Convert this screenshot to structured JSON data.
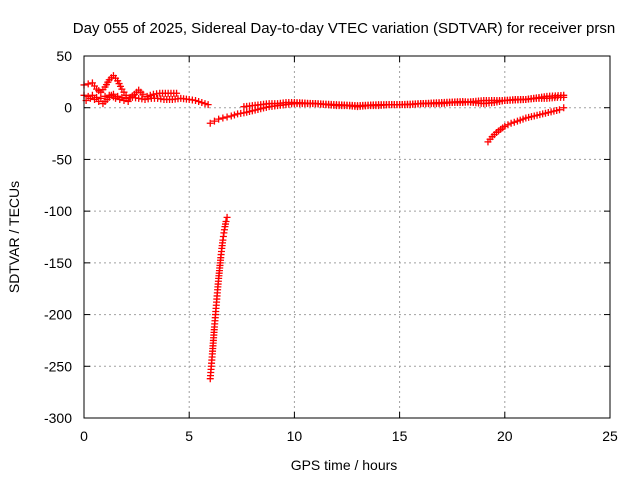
{
  "chart_data": {
    "type": "scatter",
    "title": "Day 055 of 2025, Sidereal Day-to-day VTEC variation (SDTVAR) for receiver prsn",
    "xlabel": "GPS time / hours",
    "ylabel": "SDTVAR / TECUs",
    "xlim": [
      0,
      25
    ],
    "ylim": [
      -300,
      50
    ],
    "xticks": [
      0,
      5,
      10,
      15,
      20,
      25
    ],
    "yticks": [
      50,
      0,
      -50,
      -100,
      -150,
      -200,
      -250,
      -300
    ],
    "grid": true,
    "marker": "plus",
    "color": "#ff0000",
    "series": [
      {
        "x": [
          0.0,
          0.2,
          0.4,
          0.6,
          0.8,
          1.0,
          1.2,
          1.4,
          1.6,
          1.8,
          2.0,
          2.3,
          2.6,
          2.9,
          3.2,
          3.5,
          3.8,
          4.2,
          4.6,
          5.0,
          5.3,
          5.6,
          5.9
        ],
        "y": [
          12,
          11,
          12,
          10,
          9,
          11,
          12,
          13,
          11,
          10,
          9,
          10,
          9,
          8,
          9,
          9,
          8,
          8,
          9,
          8,
          7,
          5,
          3
        ]
      },
      {
        "x": [
          0.0,
          0.2,
          0.4,
          0.6,
          0.8,
          1.0,
          1.2,
          1.4,
          1.6,
          1.8,
          2.0,
          2.2,
          2.4,
          2.6,
          2.8,
          3.0,
          3.3,
          3.6,
          4.0,
          4.4
        ],
        "y": [
          22,
          23,
          24,
          18,
          15,
          20,
          27,
          31,
          26,
          18,
          12,
          10,
          13,
          17,
          13,
          11,
          13,
          14,
          14,
          14
        ]
      },
      {
        "x": [
          0.1,
          0.3,
          0.5,
          0.7,
          0.9,
          1.1,
          1.3,
          1.5,
          1.7,
          1.9,
          2.1
        ],
        "y": [
          7,
          9,
          8,
          6,
          4,
          8,
          12,
          9,
          8,
          7,
          6
        ]
      },
      {
        "x": [
          6.0,
          6.2,
          6.4,
          6.6,
          6.8,
          7.0,
          7.3,
          7.6,
          8.0,
          8.4,
          8.8,
          9.2,
          9.6,
          10.0,
          10.5,
          11.0,
          11.5,
          12.0,
          12.5,
          13.0,
          13.5,
          14.0,
          14.5,
          15.0,
          15.5,
          16.0,
          16.5,
          17.0,
          17.5,
          18.0,
          18.5,
          19.0,
          19.5,
          20.0,
          20.5,
          21.0,
          21.5,
          22.0,
          22.5,
          22.8
        ],
        "y": [
          -15,
          -13,
          -11,
          -10,
          -9,
          -8,
          -6,
          -5,
          -3,
          -1,
          1,
          2,
          3,
          4,
          4,
          4,
          3,
          2,
          2,
          1,
          2,
          2,
          3,
          3,
          3,
          4,
          4,
          4,
          5,
          5,
          6,
          7,
          7,
          7,
          8,
          8,
          9,
          9,
          10,
          10
        ]
      },
      {
        "x": [
          7.6,
          8.0,
          8.4,
          8.8,
          9.2,
          9.6,
          10.0,
          11.0,
          12.0,
          13.0,
          14.0,
          15.0,
          16.0,
          17.0,
          18.0,
          18.5,
          19.0,
          19.5,
          20.0,
          21.0,
          22.0,
          22.8
        ],
        "y": [
          1,
          2,
          3,
          4,
          4,
          5,
          5,
          4,
          3,
          2,
          3,
          3,
          4,
          5,
          6,
          5,
          4,
          5,
          7,
          8,
          11,
          12
        ]
      },
      {
        "x": [
          19.2,
          19.4,
          19.6,
          19.8,
          20.0,
          20.3,
          20.6,
          21.0,
          21.4,
          21.8,
          22.2,
          22.6,
          22.8
        ],
        "y": [
          -33,
          -28,
          -24,
          -21,
          -18,
          -15,
          -13,
          -10,
          -8,
          -6,
          -4,
          -2,
          0
        ]
      },
      {
        "x": [
          6.0,
          6.05,
          6.1,
          6.15,
          6.2,
          6.25,
          6.3,
          6.35,
          6.4,
          6.45,
          6.5,
          6.55,
          6.6,
          6.65,
          6.7,
          6.75,
          6.8
        ],
        "y": [
          -262,
          -250,
          -238,
          -225,
          -212,
          -200,
          -188,
          -176,
          -165,
          -155,
          -145,
          -136,
          -128,
          -121,
          -115,
          -110,
          -106
        ]
      }
    ]
  }
}
